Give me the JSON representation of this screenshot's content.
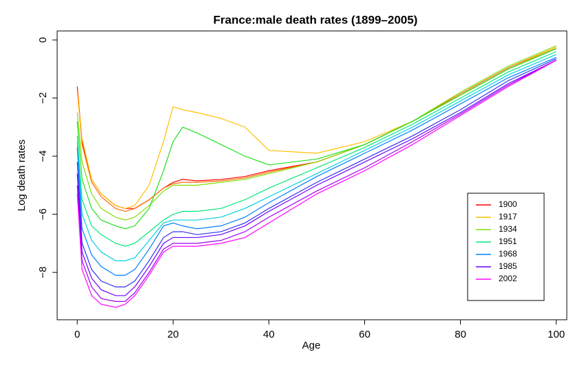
{
  "chart_data": {
    "type": "line",
    "title": "France:male death rates (1899–2005)",
    "x_label": "Age",
    "y_label": "Log death rates",
    "x": [
      0,
      1,
      3,
      5,
      8,
      10,
      12,
      15,
      18,
      20,
      22,
      25,
      30,
      35,
      40,
      50,
      60,
      70,
      80,
      90,
      100
    ],
    "series": [
      {
        "name": "1900",
        "color": "#FF0000",
        "values": [
          -1.6,
          -3.5,
          -4.8,
          -5.3,
          -5.7,
          -5.8,
          -5.8,
          -5.5,
          -5.1,
          -4.9,
          -4.8,
          -4.85,
          -4.8,
          -4.7,
          -4.5,
          -4.2,
          -3.6,
          -2.8,
          -1.9,
          -1.0,
          -0.3
        ]
      },
      {
        "color": "#FF6A00",
        "values": [
          -1.7,
          -3.6,
          -4.9,
          -5.4,
          -5.8,
          -5.9,
          -5.8,
          -5.5,
          -5.1,
          -4.95,
          -4.9,
          -4.9,
          -4.85,
          -4.75,
          -4.55,
          -4.2,
          -3.6,
          -2.8,
          -1.85,
          -0.95,
          -0.25
        ]
      },
      {
        "name": "1917",
        "color": "#FFC000",
        "values": [
          -1.8,
          -3.4,
          -4.8,
          -5.3,
          -5.7,
          -5.8,
          -5.7,
          -5.0,
          -3.5,
          -2.3,
          -2.4,
          -2.5,
          -2.7,
          -3.0,
          -3.8,
          -3.9,
          -3.5,
          -2.8,
          -1.9,
          -1.0,
          -0.25
        ]
      },
      {
        "name": "1934",
        "color": "#7FE000",
        "values": [
          -2.5,
          -4.2,
          -5.3,
          -5.8,
          -6.1,
          -6.2,
          -6.1,
          -5.7,
          -5.2,
          -5.0,
          -5.0,
          -5.0,
          -4.9,
          -4.8,
          -4.6,
          -4.2,
          -3.6,
          -2.8,
          -1.8,
          -0.9,
          -0.2
        ]
      },
      {
        "color": "#20E020",
        "values": [
          -2.8,
          -4.8,
          -5.8,
          -6.2,
          -6.4,
          -6.5,
          -6.4,
          -5.8,
          -4.5,
          -3.5,
          -3.0,
          -3.2,
          -3.6,
          -4.0,
          -4.3,
          -4.1,
          -3.6,
          -2.8,
          -1.9,
          -1.0,
          -0.3
        ]
      },
      {
        "name": "1951",
        "color": "#00E878",
        "values": [
          -3.3,
          -5.5,
          -6.4,
          -6.7,
          -7.0,
          -7.1,
          -7.0,
          -6.6,
          -6.2,
          -6.0,
          -5.9,
          -5.9,
          -5.8,
          -5.5,
          -5.1,
          -4.4,
          -3.7,
          -2.9,
          -2.0,
          -1.1,
          -0.4
        ]
      },
      {
        "color": "#00D0E0",
        "values": [
          -3.5,
          -6.0,
          -6.9,
          -7.3,
          -7.6,
          -7.6,
          -7.5,
          -6.9,
          -6.3,
          -6.2,
          -6.2,
          -6.2,
          -6.1,
          -5.8,
          -5.4,
          -4.6,
          -3.8,
          -3.0,
          -2.1,
          -1.2,
          -0.5
        ]
      },
      {
        "name": "1968",
        "color": "#0080FF",
        "values": [
          -3.7,
          -6.5,
          -7.4,
          -7.8,
          -8.1,
          -8.1,
          -7.9,
          -7.2,
          -6.4,
          -6.3,
          -6.4,
          -6.5,
          -6.4,
          -6.1,
          -5.6,
          -4.7,
          -3.9,
          -3.1,
          -2.2,
          -1.3,
          -0.6
        ]
      },
      {
        "color": "#3030F0",
        "values": [
          -4.2,
          -7.0,
          -7.9,
          -8.3,
          -8.5,
          -8.5,
          -8.3,
          -7.6,
          -6.8,
          -6.6,
          -6.6,
          -6.7,
          -6.6,
          -6.3,
          -5.8,
          -4.9,
          -4.1,
          -3.3,
          -2.4,
          -1.4,
          -0.65
        ]
      },
      {
        "name": "1985",
        "color": "#6A00FF",
        "values": [
          -4.6,
          -7.3,
          -8.2,
          -8.6,
          -8.8,
          -8.8,
          -8.5,
          -7.8,
          -7.0,
          -6.8,
          -6.8,
          -6.8,
          -6.7,
          -6.4,
          -5.9,
          -5.0,
          -4.2,
          -3.4,
          -2.5,
          -1.5,
          -0.7
        ]
      },
      {
        "color": "#A000F0",
        "values": [
          -5.0,
          -7.6,
          -8.5,
          -8.9,
          -9.0,
          -9.0,
          -8.7,
          -8.0,
          -7.2,
          -7.0,
          -7.0,
          -7.0,
          -6.9,
          -6.6,
          -6.1,
          -5.2,
          -4.4,
          -3.5,
          -2.55,
          -1.55,
          -0.7
        ]
      },
      {
        "name": "2002",
        "color": "#FF00FF",
        "values": [
          -5.3,
          -7.9,
          -8.8,
          -9.1,
          -9.2,
          -9.1,
          -8.8,
          -8.1,
          -7.3,
          -7.1,
          -7.1,
          -7.1,
          -7.0,
          -6.8,
          -6.3,
          -5.3,
          -4.5,
          -3.6,
          -2.6,
          -1.6,
          -0.7
        ]
      }
    ],
    "xlim": [
      -4.2,
      102.2
    ],
    "ylim": [
      -9.63,
      0.31
    ],
    "xticks": [
      0,
      20,
      40,
      60,
      80,
      100
    ],
    "yticks": [
      {
        "value": -8,
        "label": "−8"
      },
      {
        "value": -6,
        "label": "−6"
      },
      {
        "value": -4,
        "label": "−4"
      },
      {
        "value": -2,
        "label": "−2"
      },
      0
    ],
    "legend": "bottom-right"
  }
}
